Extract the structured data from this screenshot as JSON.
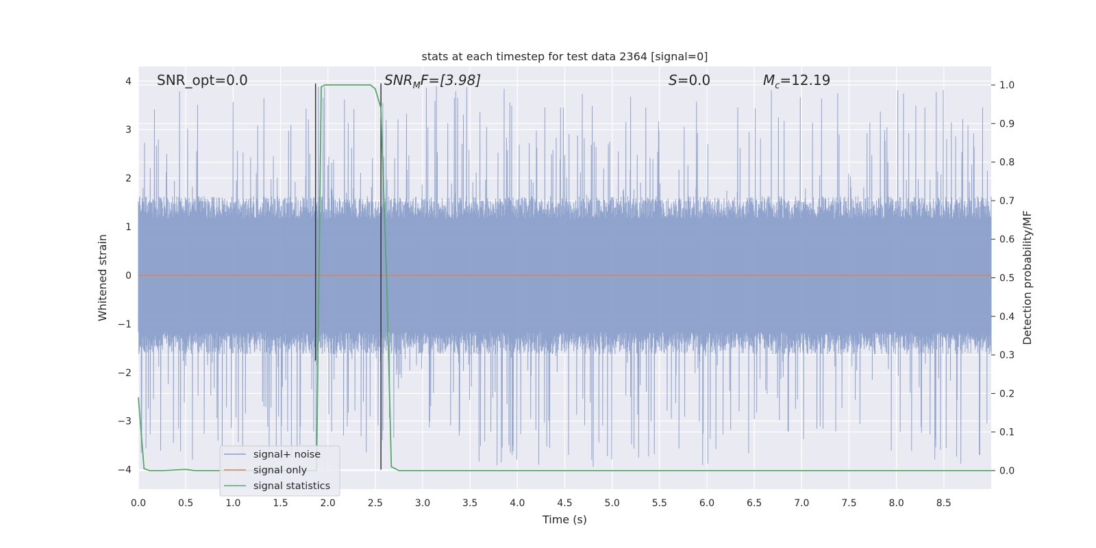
{
  "chart_data": {
    "type": "line",
    "title": "stats at each timestep for test data 2364 [signal=0]",
    "xlabel": "Time (s)",
    "ylabel": "Whitened strain",
    "y2label": "Detection probability/MF",
    "xlim": [
      0,
      9.0
    ],
    "ylim": [
      -4.4,
      4.3
    ],
    "y2lim": [
      -0.048,
      1.048
    ],
    "x_ticks": [
      "0.0",
      "0.5",
      "1.0",
      "1.5",
      "2.0",
      "2.5",
      "3.0",
      "3.5",
      "4.0",
      "4.5",
      "5.0",
      "5.5",
      "6.0",
      "6.5",
      "7.0",
      "7.5",
      "8.0",
      "8.5"
    ],
    "y_ticks": [
      "−4",
      "−3",
      "−2",
      "−1",
      "0",
      "1",
      "2",
      "3",
      "4"
    ],
    "y2_ticks": [
      "0.0",
      "0.1",
      "0.2",
      "0.3",
      "0.4",
      "0.5",
      "0.6",
      "0.7",
      "0.8",
      "0.9",
      "1.0"
    ],
    "grid": true,
    "legend_position": "lower-left",
    "colors": {
      "signal_noise": "#8a9fca",
      "signal_only": "#dd8452",
      "statistics": "#55a868",
      "marker_lines": "#333333",
      "background": "#eaeaf2"
    },
    "series": [
      {
        "name": "signal+ noise",
        "axis": "left",
        "description_bounds": "dense noise, core amplitude ~±1.5, peaks to ±3.9",
        "envelope": {
          "core_min": -1.55,
          "core_max": 1.55,
          "peak_max": 3.9,
          "peak_min": -3.95
        }
      },
      {
        "name": "signal only",
        "axis": "left",
        "x": [
          0,
          9.0
        ],
        "y": [
          0,
          0
        ]
      },
      {
        "name": "signal statistics",
        "axis": "right",
        "x": [
          0.0,
          0.06,
          0.12,
          0.25,
          0.5,
          0.6,
          0.8,
          1.2,
          1.5,
          1.85,
          1.88,
          1.93,
          1.97,
          2.1,
          2.2,
          2.3,
          2.45,
          2.5,
          2.56,
          2.62,
          2.67,
          2.75,
          3.0,
          4.0,
          5.0,
          6.0,
          7.0,
          8.0,
          9.0
        ],
        "y": [
          0.19,
          0.005,
          0.0,
          0.0,
          0.003,
          0.0,
          0.0,
          0.0,
          0.0,
          0.0,
          0.0,
          0.995,
          1.0,
          1.0,
          1.0,
          1.0,
          1.0,
          0.99,
          0.94,
          0.5,
          0.01,
          0.0,
          0.0,
          0.0,
          0.0,
          0.0,
          0.0,
          0.0,
          0.0
        ]
      }
    ],
    "vertical_markers": [
      {
        "x": 1.87,
        "y_top": 3.95,
        "y_bottom": -1.75
      },
      {
        "x": 2.56,
        "y_top": 3.95,
        "y_bottom": -4.0
      }
    ],
    "annotations": {
      "snr_opt": "SNR_opt=0.0",
      "snr_mf_main": "SNR",
      "snr_mf_sub": "M",
      "snr_mf_rest": "F=[3.98]",
      "s_italic": "S",
      "s_rest": "=0.0",
      "mc_main": "M",
      "mc_sub": "c",
      "mc_rest": "=12.19"
    }
  }
}
